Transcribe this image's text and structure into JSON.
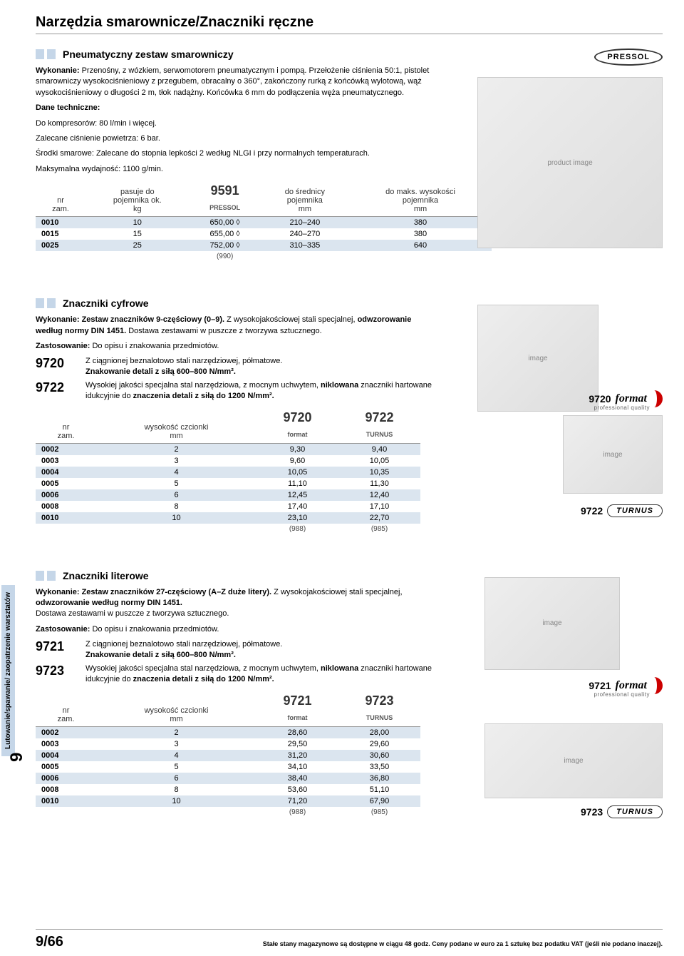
{
  "page_title": "Narzędzia smarownicze/Znaczniki ręczne",
  "sections": {
    "s1": {
      "title": "Pneumatyczny zestaw smarowniczy",
      "brand_top": "PRESSOL",
      "wyk_label": "Wykonanie:",
      "wyk_text": " Przenośny, z wózkiem, serwomotorem pneumatycznym i pompą. Przełożenie ciśnienia 50:1, pistolet smarowniczy wysokociśnieniowy z przegubem, obracalny o 360°, zakończony rurką z końcówką wylotową, wąż wysokociśnieniowy o długości 2 m, tłok nadążny. Końcówka 6 mm do podłączenia węża pneumatycznego.",
      "dane_label": "Dane techniczne:",
      "dane_l1": "Do kompresorów: 80 l/min i więcej.",
      "dane_l2": "Zalecane ciśnienie powietrza: 6 bar.",
      "dane_l3": "Środki smarowe: Zalecane do stopnia lepkości 2 według NLGI i przy normalnych temperaturach.",
      "dane_l4": "Maksymalna wydajność: 1100 g/min.",
      "table": {
        "h1a": "nr",
        "h1b": "zam.",
        "h2a": "pasuje do",
        "h2b": "pojemnika ok.",
        "h2c": "kg",
        "h3": "9591",
        "h3sub": "PRESSOL",
        "h4a": "do średnicy",
        "h4b": "pojemnika",
        "h4c": "mm",
        "h5a": "do maks. wysokości",
        "h5b": "pojemnika",
        "h5c": "mm",
        "rows": [
          {
            "c1": "0010",
            "c2": "10",
            "c3": "650,00 ◊",
            "c4": "210–240",
            "c5": "380"
          },
          {
            "c1": "0015",
            "c2": "15",
            "c3": "655,00 ◊",
            "c4": "240–270",
            "c5": "380"
          },
          {
            "c1": "0025",
            "c2": "25",
            "c3": "752,00 ◊",
            "c4": "310–335",
            "c5": "640"
          }
        ],
        "foot": "(990)"
      }
    },
    "s2": {
      "title": "Znaczniki cyfrowe",
      "wyk_label": "Wykonanie:",
      "wyk_bold": " Zestaw znaczników 9-częściowy (0–9).",
      "wyk_rest": " Z wysokojakościowej stali specjalnej, ",
      "wyk_bold2": "odwzorowanie według normy DIN 1451.",
      "wyk_rest2": " Dostawa zestawami w puszcze z tworzywa sztucznego.",
      "zast_label": "Zastosowanie:",
      "zast_text": " Do opisu i znakowania przedmiotów.",
      "c1_code": "9720",
      "c1_text": "Z ciągnionej beznalotowo stali narzędziowej, półmatowe.",
      "c1_bold": "Znakowanie detali z siłą 600–800 N/mm².",
      "c2_code": "9722",
      "c2_text": "Wysokiej jakości specjalna stal narzędziowa, z mocnym uchwytem, ",
      "c2_bold": "niklowana",
      "c2_text2": " znaczniki hartowane idukcyjnie do ",
      "c2_bold2": "znaczenia detali z siłą do 1200 N/mm².",
      "table": {
        "h1a": "nr",
        "h1b": "zam.",
        "h2a": "wysokość czcionki",
        "h2b": "mm",
        "h3": "9720",
        "h3sub": "format",
        "h4": "9722",
        "h4sub": "TURNUS",
        "rows": [
          {
            "c1": "0002",
            "c2": "2",
            "c3": "9,30",
            "c4": "9,40"
          },
          {
            "c1": "0003",
            "c2": "3",
            "c3": "9,60",
            "c4": "10,05"
          },
          {
            "c1": "0004",
            "c2": "4",
            "c3": "10,05",
            "c4": "10,35"
          },
          {
            "c1": "0005",
            "c2": "5",
            "c3": "11,10",
            "c4": "11,30"
          },
          {
            "c1": "0006",
            "c2": "6",
            "c3": "12,45",
            "c4": "12,40"
          },
          {
            "c1": "0008",
            "c2": "8",
            "c3": "17,40",
            "c4": "17,10"
          },
          {
            "c1": "0010",
            "c2": "10",
            "c3": "23,10",
            "c4": "22,70"
          }
        ],
        "foot3": "(988)",
        "foot4": "(985)"
      },
      "label_9720": "9720",
      "label_format": "format",
      "label_format_sub": "professional quality",
      "label_9722": "9722",
      "label_turnus": "TURNUS"
    },
    "s3": {
      "title": "Znaczniki literowe",
      "wyk_label": "Wykonanie:",
      "wyk_bold": " Zestaw znaczników 27-częściowy (A–Z duże litery).",
      "wyk_rest": " Z wysokojakościowej stali specjalnej, ",
      "wyk_bold2": "odwzorowanie według normy DIN 1451.",
      "wyk_rest2": "Dostawa zestawami w puszcze z tworzywa sztucznego.",
      "zast_label": "Zastosowanie:",
      "zast_text": " Do opisu i znakowania przedmiotów.",
      "c1_code": "9721",
      "c1_text": "Z ciągnionej beznalotowo stali narzędziowej, półmatowe.",
      "c1_bold": "Znakowanie detali z siłą 600–800 N/mm².",
      "c2_code": "9723",
      "c2_text": "Wysokiej jakości specjalna stal narzędziowa, z mocnym uchwytem, ",
      "c2_bold": "niklowana",
      "c2_text2": " znaczniki hartowane idukcyjnie do ",
      "c2_bold2": "znaczenia detali z siłą do 1200 N/mm².",
      "table": {
        "h1a": "nr",
        "h1b": "zam.",
        "h2a": "wysokość czcionki",
        "h2b": "mm",
        "h3": "9721",
        "h3sub": "format",
        "h4": "9723",
        "h4sub": "TURNUS",
        "rows": [
          {
            "c1": "0002",
            "c2": "2",
            "c3": "28,60",
            "c4": "28,00"
          },
          {
            "c1": "0003",
            "c2": "3",
            "c3": "29,50",
            "c4": "29,60"
          },
          {
            "c1": "0004",
            "c2": "4",
            "c3": "31,20",
            "c4": "30,60"
          },
          {
            "c1": "0005",
            "c2": "5",
            "c3": "34,10",
            "c4": "33,50"
          },
          {
            "c1": "0006",
            "c2": "6",
            "c3": "38,40",
            "c4": "36,80"
          },
          {
            "c1": "0008",
            "c2": "8",
            "c3": "53,60",
            "c4": "51,10"
          },
          {
            "c1": "0010",
            "c2": "10",
            "c3": "71,20",
            "c4": "67,90"
          }
        ],
        "foot3": "(988)",
        "foot4": "(985)"
      },
      "label_9721": "9721",
      "label_format": "format",
      "label_format_sub": "professional quality",
      "label_9723": "9723",
      "label_turnus": "TURNUS"
    }
  },
  "sidebar_text": "Lutowanie/spawanie/ zaopatrzenie warsztatów",
  "sidebar_num": "9",
  "footer_page": "9/66",
  "footer_text": "Stałe stany magazynowe są dostępne w ciągu 48 godz. Ceny podane w euro za 1 sztukę bez podatku VAT (jeśli nie podano inaczej)."
}
